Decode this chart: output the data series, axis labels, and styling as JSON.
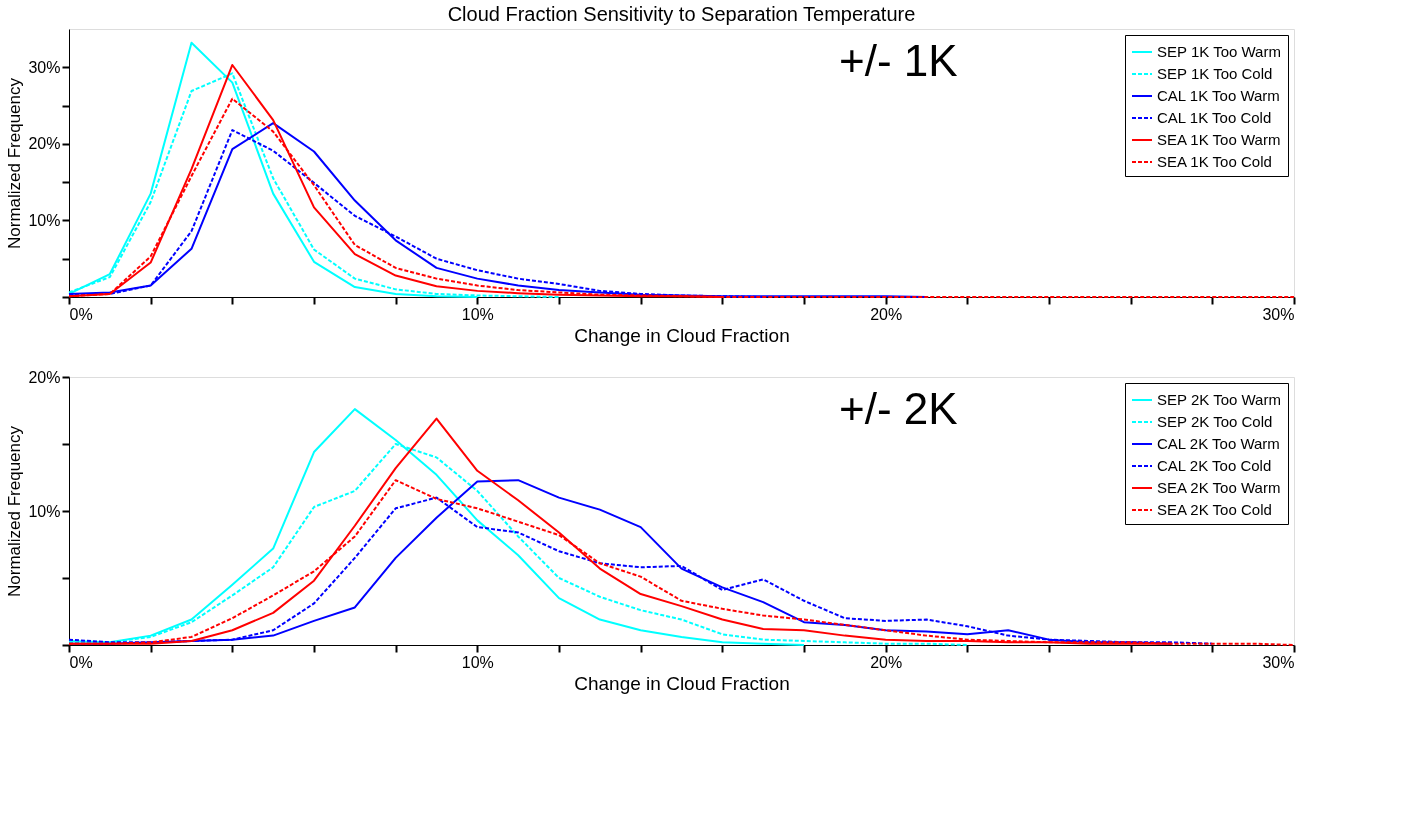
{
  "chart_data": [
    {
      "type": "line",
      "title": "Cloud Fraction Sensitivity to Separation Temperature",
      "xlabel": "Change in Cloud Fraction",
      "ylabel": "Normalized Frequency",
      "annotations": [
        "+/- 1K"
      ],
      "legend": "top right",
      "grid": false,
      "marker": "none",
      "xlim": [
        0,
        30
      ],
      "xticks": [
        {
          "value": 0,
          "label": "0%"
        },
        {
          "value": 2,
          "label": null
        },
        {
          "value": 4,
          "label": null
        },
        {
          "value": 6,
          "label": null
        },
        {
          "value": 8,
          "label": null
        },
        {
          "value": 10,
          "label": "10%"
        },
        {
          "value": 12,
          "label": null
        },
        {
          "value": 14,
          "label": null
        },
        {
          "value": 16,
          "label": null
        },
        {
          "value": 18,
          "label": null
        },
        {
          "value": 20,
          "label": "20%"
        },
        {
          "value": 22,
          "label": null
        },
        {
          "value": 24,
          "label": null
        },
        {
          "value": 26,
          "label": null
        },
        {
          "value": 28,
          "label": null
        },
        {
          "value": 30,
          "label": "30%"
        }
      ],
      "ylim": [
        0,
        35
      ],
      "yticks": [
        {
          "value": 0,
          "label": null
        },
        {
          "value": 5,
          "label": null
        },
        {
          "value": 10,
          "label": "10%"
        },
        {
          "value": 15,
          "label": null
        },
        {
          "value": 20,
          "label": "20%"
        },
        {
          "value": 25,
          "label": null
        },
        {
          "value": 30,
          "label": "30%"
        }
      ],
      "x": [
        0,
        1,
        2,
        3,
        4,
        5,
        6,
        7,
        8,
        9,
        10,
        11,
        12,
        13,
        14,
        15,
        16,
        17,
        18,
        19,
        20,
        21,
        22,
        23,
        24,
        25,
        26,
        27,
        28,
        29,
        30
      ],
      "series": [
        {
          "name": "SEP 1K Too Warm",
          "color": "#00ffff",
          "line_style": "solid",
          "values": [
            0.4,
            3.0,
            13.5,
            33.2,
            28.0,
            13.5,
            4.6,
            1.3,
            0.4,
            0.1,
            0,
            null,
            null,
            null,
            null,
            null,
            null,
            null,
            null,
            null,
            null,
            null,
            null,
            null,
            null,
            null,
            null,
            null,
            null,
            null,
            null
          ]
        },
        {
          "name": "SEP 1K Too Cold",
          "color": "#00ffff",
          "line_style": "dashed",
          "values": [
            0.6,
            2.6,
            12.4,
            26.9,
            29.2,
            15.5,
            6.2,
            2.4,
            1.0,
            0.4,
            0.2,
            0.1,
            0,
            null,
            null,
            null,
            null,
            null,
            null,
            null,
            null,
            null,
            null,
            null,
            null,
            null,
            null,
            null,
            null,
            null,
            null
          ]
        },
        {
          "name": "CAL 1K Too Warm",
          "color": "#0000ff",
          "line_style": "solid",
          "values": [
            0.4,
            0.6,
            1.5,
            6.3,
            19.3,
            22.7,
            19.0,
            12.6,
            7.4,
            3.8,
            2.4,
            1.5,
            0.9,
            0.6,
            0.3,
            0.2,
            0.1,
            0.1,
            0.1,
            0.1,
            0.1,
            0,
            null,
            null,
            null,
            null,
            null,
            null,
            null,
            null,
            null
          ]
        },
        {
          "name": "CAL 1K Too Cold",
          "color": "#0000ff",
          "line_style": "dashed",
          "values": [
            0.4,
            0.4,
            1.5,
            8.6,
            21.8,
            19.1,
            14.9,
            10.6,
            7.9,
            5.0,
            3.5,
            2.4,
            1.7,
            0.8,
            0.4,
            0.2,
            0.1,
            0,
            null,
            null,
            null,
            null,
            null,
            null,
            null,
            null,
            null,
            null,
            null,
            null,
            null
          ]
        },
        {
          "name": "SEA 1K Too Warm",
          "color": "#ff0000",
          "line_style": "solid",
          "values": [
            0.1,
            0.4,
            4.5,
            16.7,
            30.3,
            23.1,
            11.7,
            5.6,
            2.8,
            1.4,
            0.8,
            0.5,
            0.3,
            0.2,
            0.1,
            0.1,
            0,
            null,
            null,
            null,
            null,
            null,
            null,
            null,
            null,
            null,
            null,
            null,
            null,
            null,
            null
          ]
        },
        {
          "name": "SEA 1K Too Cold",
          "color": "#ff0000",
          "line_style": "dashed",
          "values": [
            0.1,
            0.4,
            5.3,
            15.8,
            25.9,
            21.6,
            14.6,
            6.8,
            3.8,
            2.4,
            1.5,
            0.9,
            0.6,
            0.3,
            0.2,
            0.1,
            0,
            0,
            0,
            0,
            0,
            0,
            0,
            0,
            0,
            0,
            0,
            0,
            0,
            0,
            0
          ]
        }
      ]
    },
    {
      "type": "line",
      "xlabel": "Change in Cloud Fraction",
      "ylabel": "Normalized Frequency",
      "annotations": [
        "+/- 2K"
      ],
      "legend": "top right",
      "grid": false,
      "marker": "none",
      "xlim": [
        0,
        30
      ],
      "xticks": [
        {
          "value": 0,
          "label": "0%"
        },
        {
          "value": 2,
          "label": null
        },
        {
          "value": 4,
          "label": null
        },
        {
          "value": 6,
          "label": null
        },
        {
          "value": 8,
          "label": null
        },
        {
          "value": 10,
          "label": "10%"
        },
        {
          "value": 12,
          "label": null
        },
        {
          "value": 14,
          "label": null
        },
        {
          "value": 16,
          "label": null
        },
        {
          "value": 18,
          "label": null
        },
        {
          "value": 20,
          "label": "20%"
        },
        {
          "value": 22,
          "label": null
        },
        {
          "value": 24,
          "label": null
        },
        {
          "value": 26,
          "label": null
        },
        {
          "value": 28,
          "label": null
        },
        {
          "value": 30,
          "label": "30%"
        }
      ],
      "ylim": [
        0,
        20
      ],
      "yticks": [
        {
          "value": 0,
          "label": null
        },
        {
          "value": 5,
          "label": null
        },
        {
          "value": 10,
          "label": "10%"
        },
        {
          "value": 15,
          "label": null
        },
        {
          "value": 20,
          "label": "20%"
        }
      ],
      "x": [
        0,
        1,
        2,
        3,
        4,
        5,
        6,
        7,
        8,
        9,
        10,
        11,
        12,
        13,
        14,
        15,
        16,
        17,
        18,
        19,
        20,
        21,
        22,
        23,
        24,
        25,
        26,
        27,
        28,
        29,
        30
      ],
      "series": [
        {
          "name": "SEP 2K Too Warm",
          "color": "#00ffff",
          "line_style": "solid",
          "values": [
            0.3,
            0.2,
            0.7,
            1.9,
            4.5,
            7.2,
            14.4,
            17.6,
            15.3,
            12.7,
            9.3,
            6.7,
            3.5,
            1.9,
            1.1,
            0.6,
            0.2,
            0.1,
            0,
            null,
            null,
            null,
            null,
            null,
            null,
            null,
            null,
            null,
            null,
            null,
            null
          ]
        },
        {
          "name": "SEP 2K Too Cold",
          "color": "#00ffff",
          "line_style": "dashed",
          "values": [
            0.2,
            0.2,
            0.6,
            1.7,
            3.7,
            5.8,
            10.3,
            11.5,
            15.0,
            14.0,
            11.5,
            8.1,
            5.0,
            3.6,
            2.6,
            1.9,
            0.8,
            0.4,
            0.3,
            0.2,
            0.1,
            0.1,
            0,
            null,
            null,
            null,
            null,
            null,
            null,
            null,
            null
          ]
        },
        {
          "name": "CAL 2K Too Warm",
          "color": "#0000ff",
          "line_style": "solid",
          "values": [
            0.1,
            0.1,
            0.2,
            0.3,
            0.4,
            0.7,
            1.8,
            2.8,
            6.5,
            9.5,
            12.2,
            12.3,
            11.0,
            10.1,
            8.8,
            5.7,
            4.3,
            3.2,
            1.7,
            1.5,
            1.1,
            1.0,
            0.8,
            1.1,
            0.4,
            0.2,
            0.2,
            0.1,
            null,
            null,
            null
          ]
        },
        {
          "name": "CAL 2K Too Cold",
          "color": "#0000ff",
          "line_style": "dashed",
          "values": [
            0.4,
            0.2,
            0.2,
            0.3,
            0.4,
            1.1,
            3.1,
            6.5,
            10.2,
            11.0,
            8.8,
            8.4,
            7.0,
            6.1,
            5.8,
            5.9,
            4.1,
            4.9,
            3.3,
            2.0,
            1.8,
            1.9,
            1.4,
            0.7,
            0.4,
            0.3,
            0.2,
            0.2,
            0.1,
            null,
            null
          ]
        },
        {
          "name": "SEA 2K Too Warm",
          "color": "#ff0000",
          "line_style": "solid",
          "values": [
            0.1,
            0.1,
            0.1,
            0.3,
            1.1,
            2.4,
            4.8,
            8.9,
            13.2,
            16.9,
            13.0,
            10.8,
            8.4,
            5.7,
            3.8,
            2.9,
            1.9,
            1.2,
            1.1,
            0.7,
            0.4,
            0.3,
            0.3,
            0.2,
            0.2,
            0.1,
            0.1,
            0.1,
            null,
            null,
            null
          ]
        },
        {
          "name": "SEA 2K Too Cold",
          "color": "#ff0000",
          "line_style": "dashed",
          "values": [
            0.1,
            0.1,
            0.2,
            0.6,
            2.0,
            3.7,
            5.5,
            8.1,
            12.3,
            10.9,
            10.2,
            9.2,
            8.2,
            6.1,
            5.1,
            3.3,
            2.7,
            2.2,
            1.9,
            1.5,
            1.1,
            0.7,
            0.4,
            0.3,
            0.2,
            0.2,
            0.2,
            0.1,
            0.1,
            0.1,
            0
          ]
        }
      ]
    }
  ]
}
